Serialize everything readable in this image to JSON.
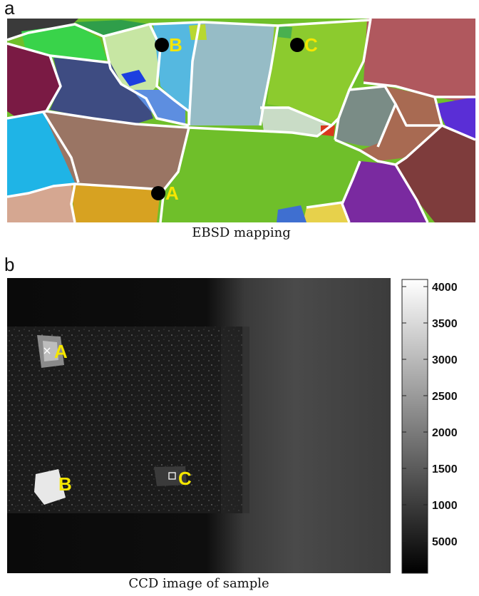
{
  "panel_a": {
    "letter": "a",
    "caption": "EBSD mapping",
    "points": [
      {
        "label": "A"
      },
      {
        "label": "B"
      },
      {
        "label": "C"
      }
    ],
    "colors": {
      "boundary": "#ffffff",
      "marker": "#000000",
      "marker_label": "#f5e600"
    }
  },
  "panel_b": {
    "letter": "b",
    "caption": "CCD image of sample",
    "points": [
      {
        "label": "A",
        "marker": "cross"
      },
      {
        "label": "B",
        "marker": "none"
      },
      {
        "label": "C",
        "marker": "square"
      }
    ],
    "colorbar": {
      "ticks": [
        "4000",
        "3500",
        "3000",
        "2500",
        "2000",
        "1500",
        "1000",
        "5000"
      ],
      "colormap": "grayscale"
    }
  }
}
